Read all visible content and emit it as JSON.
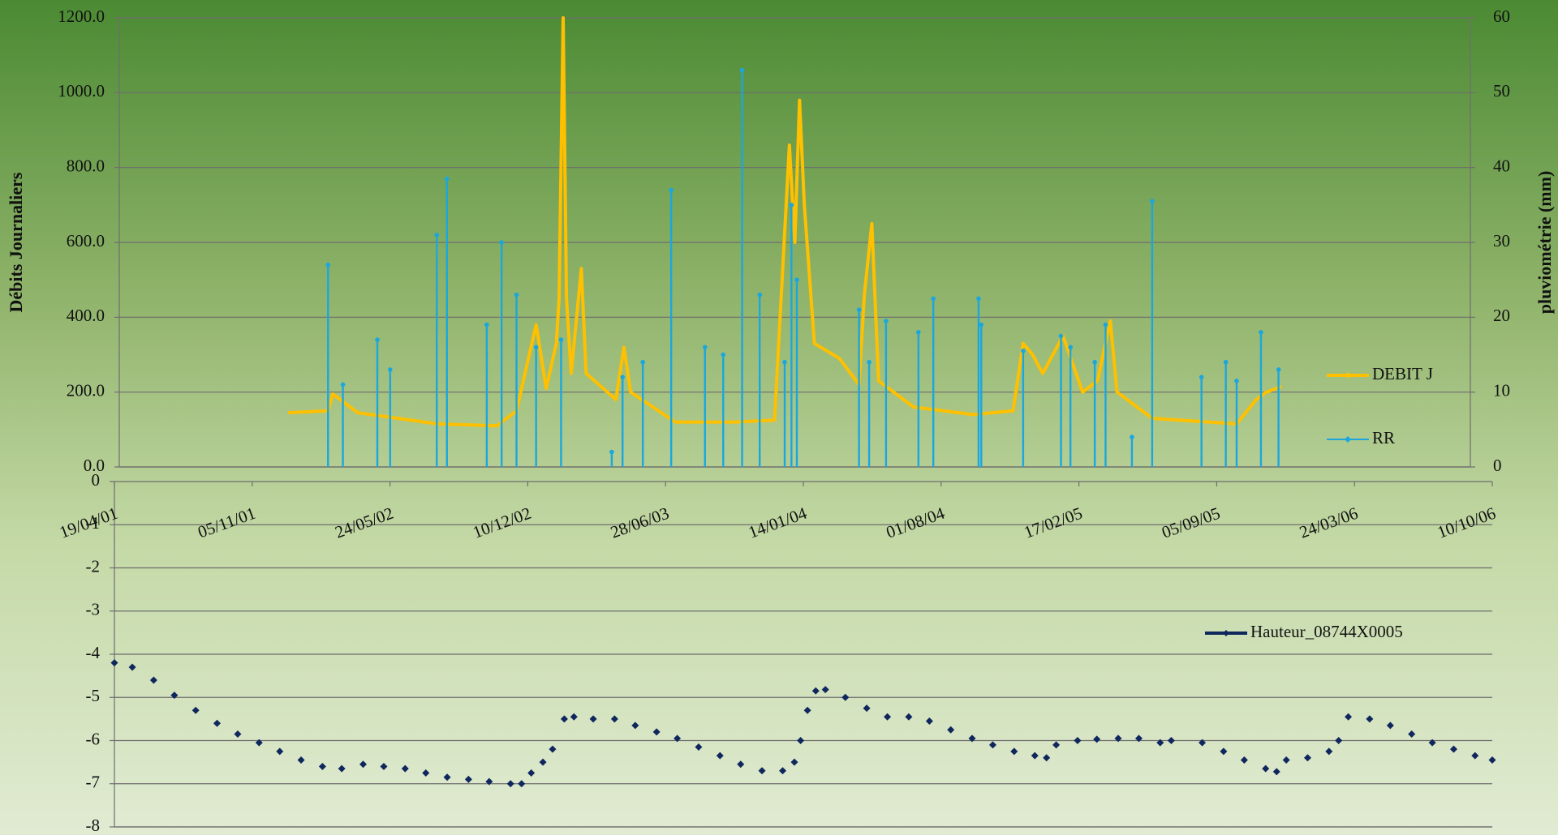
{
  "chart_data": [
    {
      "type": "line",
      "y_label": "Débits Journaliers",
      "y2_label": "pluviométrie (mm)",
      "xlim": [
        "19/04/01",
        "10/10/06"
      ],
      "ylim": [
        0,
        1200
      ],
      "yticks": [
        {
          "value": 0,
          "label": "0.0"
        },
        {
          "value": 200,
          "label": "200.0"
        },
        {
          "value": 400,
          "label": "400.0"
        },
        {
          "value": 600,
          "label": "600.0"
        },
        {
          "value": 800,
          "label": "800.0"
        },
        {
          "value": 1000,
          "label": "1000.0"
        },
        {
          "value": 1200,
          "label": "1200.0"
        }
      ],
      "y2lim": [
        0,
        60
      ],
      "y2ticks": [
        0,
        10,
        20,
        30,
        40,
        50,
        60
      ],
      "grid": true,
      "legend": "right",
      "series": [
        {
          "name": "DEBIT J",
          "color": "#ffc000",
          "style": "line",
          "x": [
            "25/12/01",
            "22/02/02",
            "01/03/02",
            "07/04/02",
            "05/06/02",
            "03/08/02",
            "30/10/02",
            "28/11/02",
            "27/12/02",
            "11/01/03",
            "26/01/03",
            "30/01/03",
            "05/02/03",
            "10/02/03",
            "17/02/03",
            "04/03/03",
            "11/03/03",
            "24/04/03",
            "06/05/03",
            "16/05/03",
            "21/07/03",
            "17/10/03",
            "15/12/03",
            "06/01/04",
            "14/01/04",
            "21/01/04",
            "28/01/04",
            "12/02/04",
            "20/03/04",
            "18/04/04",
            "26/04/04",
            "07/05/04",
            "17/05/04",
            "08/07/04",
            "04/10/04",
            "02/12/04",
            "17/12/04",
            "31/12/04",
            "15/01/05",
            "14/02/05",
            "15/03/05",
            "06/04/05",
            "25/04/05",
            "05/05/05",
            "26/06/05",
            "29/10/05",
            "27/11/05",
            "12/12/05",
            "03/01/06"
          ],
          "values": [
            145,
            150,
            195,
            145,
            130,
            115,
            110,
            150,
            380,
            210,
            330,
            450,
            1200,
            450,
            250,
            530,
            250,
            180,
            320,
            200,
            120,
            120,
            125,
            860,
            600,
            980,
            700,
            330,
            290,
            220,
            460,
            650,
            230,
            160,
            140,
            150,
            330,
            300,
            250,
            350,
            200,
            230,
            390,
            200,
            130,
            115,
            180,
            200,
            215
          ]
        },
        {
          "name": "RR",
          "color": "#1ba7dd",
          "axis": "y2",
          "style": "stick",
          "x": [
            "22/02/02",
            "16/03/02",
            "06/05/02",
            "25/05/02",
            "02/08/02",
            "17/08/02",
            "15/10/02",
            "06/11/02",
            "28/11/02",
            "27/12/02",
            "02/02/03",
            "18/04/03",
            "04/05/03",
            "03/06/03",
            "15/07/03",
            "03/09/03",
            "30/09/03",
            "28/10/03",
            "23/11/03",
            "30/12/03",
            "09/01/04",
            "17/01/04",
            "18/04/04",
            "03/05/04",
            "28/05/04",
            "15/07/04",
            "06/08/04",
            "12/10/04",
            "16/10/04",
            "17/12/04",
            "11/02/05",
            "25/02/05",
            "02/04/05",
            "18/04/05",
            "27/05/05",
            "26/06/05",
            "07/09/05",
            "13/10/05",
            "29/10/05",
            "04/12/05",
            "30/12/05"
          ],
          "values": [
            27,
            11,
            17,
            13,
            31,
            38.5,
            19,
            30,
            23,
            16,
            17,
            2,
            12,
            14,
            37,
            16,
            15,
            53,
            23,
            14,
            35,
            25,
            21,
            14,
            19.5,
            18,
            22.5,
            22.5,
            19,
            15.5,
            17.5,
            16,
            14,
            19,
            4,
            35.5,
            12,
            14,
            11.5,
            18,
            13
          ]
        }
      ]
    },
    {
      "type": "scatter",
      "xlim": [
        "19/04/01",
        "10/10/06"
      ],
      "xticks": [
        "19/04/01",
        "05/11/01",
        "24/05/02",
        "10/12/02",
        "28/06/03",
        "14/01/04",
        "01/08/04",
        "17/02/05",
        "05/09/05",
        "24/03/06",
        "10/10/06"
      ],
      "ylim": [
        -8,
        0
      ],
      "yticks": [
        -8,
        -7,
        -6,
        -5,
        -4,
        -3,
        -2,
        -1,
        0
      ],
      "grid": true,
      "legend": "right",
      "series": [
        {
          "name": "Hauteur_08744X0005",
          "color": "#10275e",
          "x": [
            "19/04/01",
            "15/05/01",
            "15/06/01",
            "15/07/01",
            "15/08/01",
            "15/09/01",
            "15/10/01",
            "15/11/01",
            "15/12/01",
            "15/01/02",
            "15/02/02",
            "15/03/02",
            "15/04/02",
            "15/05/02",
            "15/06/02",
            "15/07/02",
            "15/08/02",
            "15/09/02",
            "15/10/02",
            "15/11/02",
            "01/12/02",
            "15/12/02",
            "01/01/03",
            "15/01/03",
            "01/02/03",
            "15/02/03",
            "15/03/03",
            "15/04/03",
            "15/05/03",
            "15/06/03",
            "15/07/03",
            "15/08/03",
            "15/09/03",
            "15/10/03",
            "15/11/03",
            "15/12/03",
            "01/01/04",
            "10/01/04",
            "20/01/04",
            "01/02/04",
            "15/02/04",
            "15/03/04",
            "15/04/04",
            "15/05/04",
            "15/06/04",
            "15/07/04",
            "15/08/04",
            "15/09/04",
            "15/10/04",
            "15/11/04",
            "15/12/04",
            "01/01/05",
            "15/01/05",
            "15/02/05",
            "15/03/05",
            "15/04/05",
            "15/05/05",
            "15/06/05",
            "01/07/05",
            "15/08/05",
            "15/09/05",
            "15/10/05",
            "15/11/05",
            "01/12/05",
            "15/12/05",
            "15/01/06",
            "15/02/06",
            "01/03/06",
            "15/03/06",
            "15/04/06",
            "15/05/06",
            "15/06/06",
            "15/07/06",
            "15/08/06",
            "15/09/06",
            "10/10/06"
          ],
          "values": [
            -4.2,
            -4.3,
            -4.6,
            -4.95,
            -5.3,
            -5.6,
            -5.85,
            -6.05,
            -6.25,
            -6.45,
            -6.6,
            -6.65,
            -6.55,
            -6.6,
            -6.65,
            -6.75,
            -6.85,
            -6.9,
            -6.95,
            -7.0,
            -7.0,
            -6.75,
            -6.5,
            -6.2,
            -5.5,
            -5.45,
            -5.5,
            -5.5,
            -5.65,
            -5.8,
            -5.95,
            -6.15,
            -6.35,
            -6.55,
            -6.7,
            -6.7,
            -6.5,
            -6.0,
            -5.3,
            -4.85,
            -4.82,
            -5.0,
            -5.25,
            -5.45,
            -5.45,
            -5.55,
            -5.75,
            -5.95,
            -6.1,
            -6.25,
            -6.35,
            -6.4,
            -6.1,
            -6.0,
            -5.97,
            -5.95,
            -5.95,
            -6.05,
            -6.0,
            -6.05,
            -6.25,
            -6.45,
            -6.65,
            -6.72,
            -6.45,
            -6.4,
            -6.25,
            -6.0,
            -5.45,
            -5.5,
            -5.65,
            -5.85,
            -6.05,
            -6.2,
            -6.35,
            -6.45
          ]
        }
      ]
    }
  ]
}
